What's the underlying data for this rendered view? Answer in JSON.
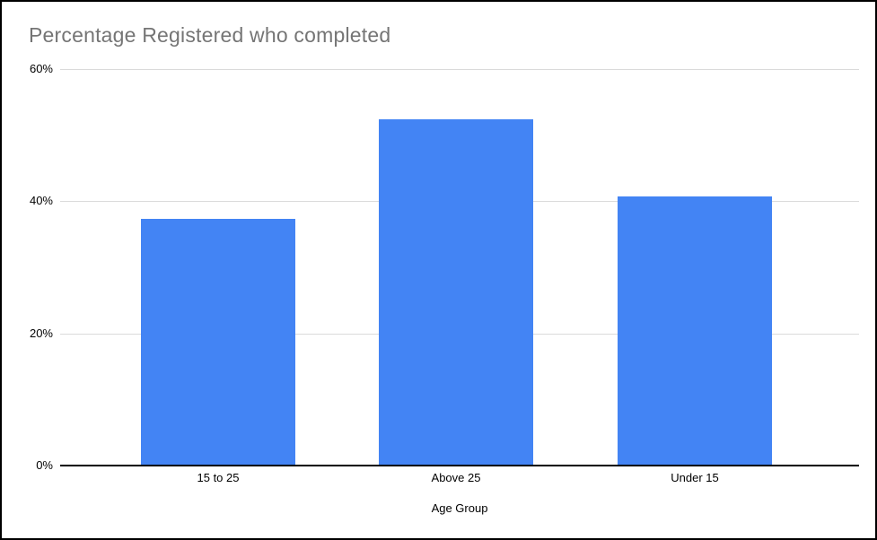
{
  "window": {
    "background": "#ffffff",
    "border_color": "#000000"
  },
  "chart_data": {
    "type": "bar",
    "title": "Percentage Registered who completed",
    "xlabel": "Age Group",
    "ylabel": "",
    "categories": [
      "15 to 25",
      "Above 25",
      "Under 15"
    ],
    "values": [
      37.3,
      52.4,
      40.7
    ],
    "yticks": [
      0,
      20,
      40,
      60
    ],
    "ytick_labels": [
      "0%",
      "20%",
      "40%",
      "60%"
    ],
    "ylim": [
      0,
      60
    ],
    "grid": true,
    "legend": "none",
    "bar_color": "#4384f4",
    "title_color": "#757575",
    "gridline_color": "#dadada",
    "axis_line_color": "#000000",
    "tick_label_color": "#000000"
  }
}
